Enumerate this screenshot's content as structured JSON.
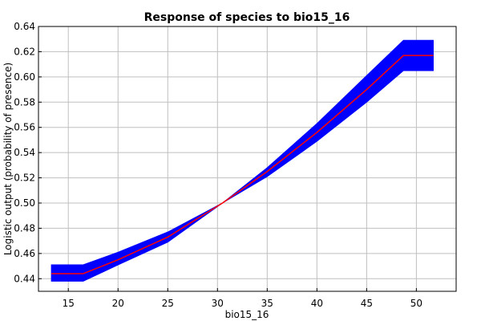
{
  "chart_data": {
    "type": "line",
    "title": "Response of species to bio15_16",
    "xlabel": "bio15_16",
    "ylabel": "Logistic output (probability of presence)",
    "xlim": [
      12,
      54
    ],
    "ylim": [
      0.43,
      0.64
    ],
    "xticks": [
      15,
      20,
      25,
      30,
      35,
      40,
      45,
      50
    ],
    "yticks": [
      0.44,
      0.46,
      0.48,
      0.5,
      0.52,
      0.54,
      0.56,
      0.58,
      0.6,
      0.62,
      0.64
    ],
    "grid": true,
    "series": [
      {
        "role": "mean",
        "color": "#ff0000",
        "x": [
          13.3,
          16.5,
          20,
          25,
          30.5,
          35,
          40,
          45,
          48.7,
          51.7
        ],
        "y": [
          0.444,
          0.444,
          0.455,
          0.473,
          0.5,
          0.525,
          0.556,
          0.59,
          0.617,
          0.617
        ]
      },
      {
        "role": "band",
        "color": "#0000ff",
        "x": [
          13.3,
          16.5,
          20,
          25,
          30.5,
          35,
          40,
          45,
          48.7,
          51.7
        ],
        "y_upper": [
          0.451,
          0.451,
          0.461,
          0.477,
          0.5,
          0.528,
          0.563,
          0.601,
          0.629,
          0.629
        ],
        "y_lower": [
          0.438,
          0.438,
          0.451,
          0.469,
          0.5,
          0.521,
          0.549,
          0.58,
          0.605,
          0.605
        ]
      }
    ]
  }
}
